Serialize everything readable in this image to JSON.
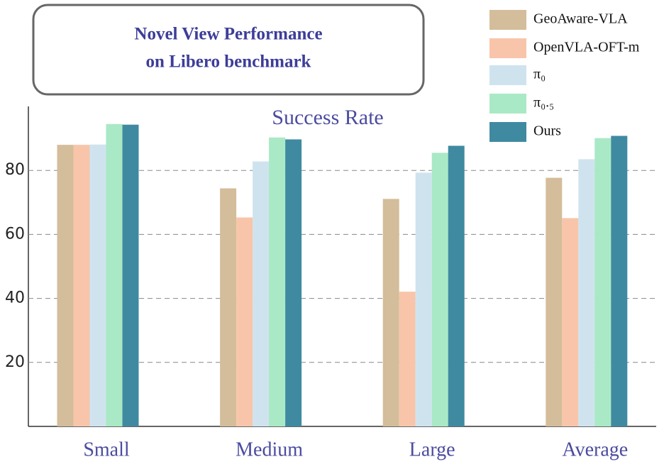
{
  "chart_data": {
    "type": "bar",
    "title": [
      "Novel View Performance",
      "on Libero  benchmark"
    ],
    "subtitle": "Success Rate",
    "categories": [
      "Small",
      "Medium",
      "Large",
      "Average"
    ],
    "series": [
      {
        "name": "GeoAware-VLA",
        "color": "#d4bd9a",
        "values": [
          88,
          74.4,
          71.1,
          77.7
        ]
      },
      {
        "name": "OpenVLA-OFT-m",
        "color": "#f8c5aa",
        "values": [
          88,
          65.3,
          42.1,
          65.1
        ]
      },
      {
        "name": "π₀",
        "color": "#cfe3ef",
        "values": [
          88.1,
          82.8,
          79.3,
          83.5
        ]
      },
      {
        "name": "π₀.₅",
        "color": "#a9e9c5",
        "values": [
          94.5,
          90.3,
          85.5,
          90.1
        ]
      },
      {
        "name": "Ours",
        "color": "#3f8aa1",
        "values": [
          94.3,
          89.7,
          87.7,
          90.8
        ]
      }
    ],
    "ylim": [
      0,
      100
    ],
    "yticks": [
      20,
      40,
      60,
      80
    ],
    "grid": true,
    "legend": "upper right"
  }
}
